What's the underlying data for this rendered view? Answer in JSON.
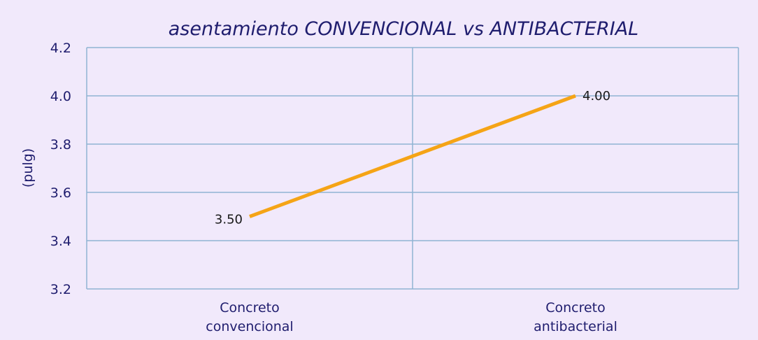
{
  "chart_data": {
    "type": "line",
    "title": "asentamiento CONVENCIONAL vs ANTIBACTERIAL",
    "ylabel": "(pulg)",
    "xlabel": "",
    "categories": [
      [
        "Concreto",
        "convencional"
      ],
      [
        "Concreto",
        "antibacterial"
      ]
    ],
    "series": [
      {
        "values": [
          3.5,
          4.0
        ],
        "data_labels": [
          "3.50",
          "4.00"
        ]
      }
    ],
    "ylim": [
      3.2,
      4.2
    ],
    "yticks": [
      3.2,
      3.4,
      3.6,
      3.8,
      4.0,
      4.2
    ],
    "ytick_labels": [
      "3.2",
      "3.4",
      "3.6",
      "3.8",
      "4.0",
      "4.2"
    ],
    "grid": true,
    "legend": "none",
    "colors": {
      "background": "#f1e9fb",
      "plot_background": "#f1e9fb",
      "grid": "#8fb4d3",
      "line": "#f5a416",
      "text": "#1f1d6e",
      "data_label_text": "#1a1a1a"
    }
  }
}
